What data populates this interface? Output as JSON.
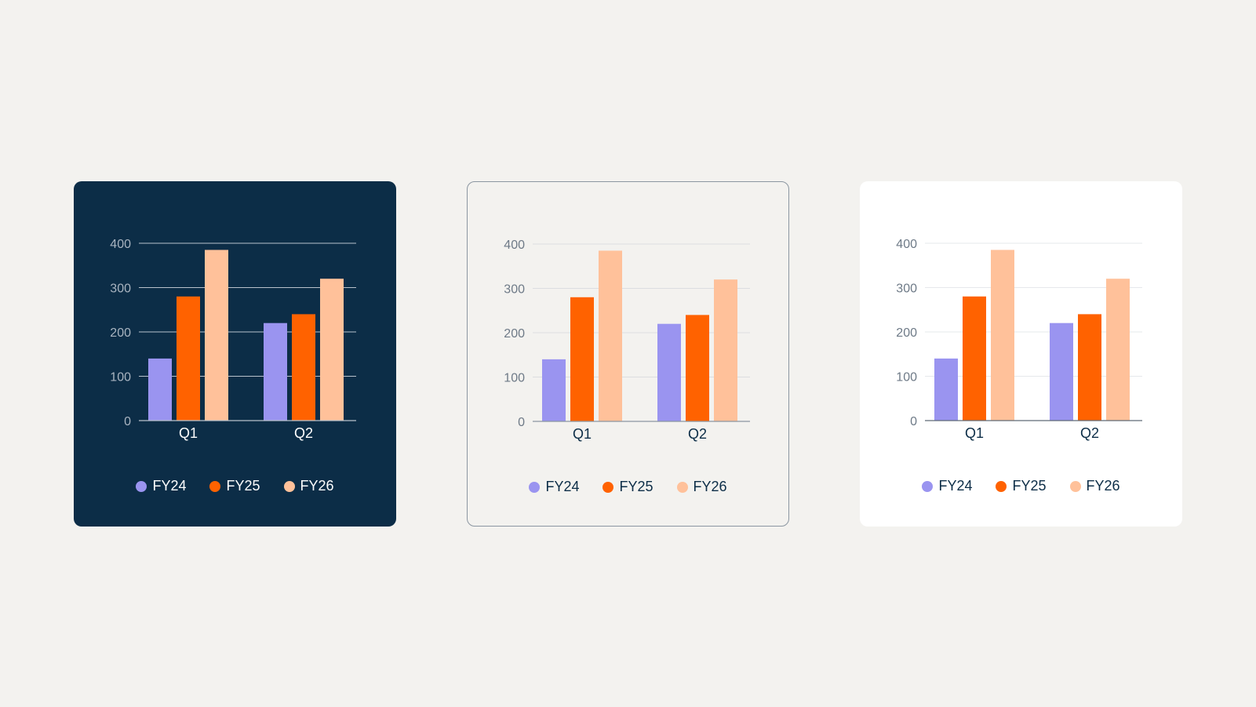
{
  "palette": {
    "FY24": "#9a94f0",
    "FY25": "#ff6200",
    "FY26": "#ffc19a"
  },
  "themes": [
    {
      "id": "dark",
      "card_bg": "#0c2d47",
      "grid": "#b9c2cc",
      "axis": "#b9c2cc",
      "tick_text": "#a9b4c0",
      "cat_text": "#ffffff",
      "legend_text": "#ffffff"
    },
    {
      "id": "outline",
      "card_bg": "#f3f2ef",
      "grid": "#dcdde0",
      "axis": "#8b96a1",
      "tick_text": "#6e7a87",
      "cat_text": "#0c2d47",
      "legend_text": "#0c2d47"
    },
    {
      "id": "white",
      "card_bg": "#ffffff",
      "grid": "#e6e8eb",
      "axis": "#5f6b78",
      "tick_text": "#6e7a87",
      "cat_text": "#0c2d47",
      "legend_text": "#0c2d47"
    }
  ],
  "chart_data": [
    {
      "type": "bar",
      "categories": [
        "Q1",
        "Q2"
      ],
      "series": [
        {
          "name": "FY24",
          "values": [
            140,
            220
          ]
        },
        {
          "name": "FY25",
          "values": [
            280,
            240
          ]
        },
        {
          "name": "FY26",
          "values": [
            385,
            320
          ]
        }
      ],
      "yticks": [
        0,
        100,
        200,
        300,
        400
      ],
      "ylim": [
        0,
        400
      ],
      "grid": true,
      "legend": "bottom-center"
    },
    {
      "type": "bar",
      "categories": [
        "Q1",
        "Q2"
      ],
      "series": [
        {
          "name": "FY24",
          "values": [
            140,
            220
          ]
        },
        {
          "name": "FY25",
          "values": [
            280,
            240
          ]
        },
        {
          "name": "FY26",
          "values": [
            385,
            320
          ]
        }
      ],
      "yticks": [
        0,
        100,
        200,
        300,
        400
      ],
      "ylim": [
        0,
        400
      ],
      "grid": true,
      "legend": "bottom-center"
    },
    {
      "type": "bar",
      "categories": [
        "Q1",
        "Q2"
      ],
      "series": [
        {
          "name": "FY24",
          "values": [
            140,
            220
          ]
        },
        {
          "name": "FY25",
          "values": [
            280,
            240
          ]
        },
        {
          "name": "FY26",
          "values": [
            385,
            320
          ]
        }
      ],
      "yticks": [
        0,
        100,
        200,
        300,
        400
      ],
      "ylim": [
        0,
        400
      ],
      "grid": true,
      "legend": "bottom-center"
    }
  ]
}
